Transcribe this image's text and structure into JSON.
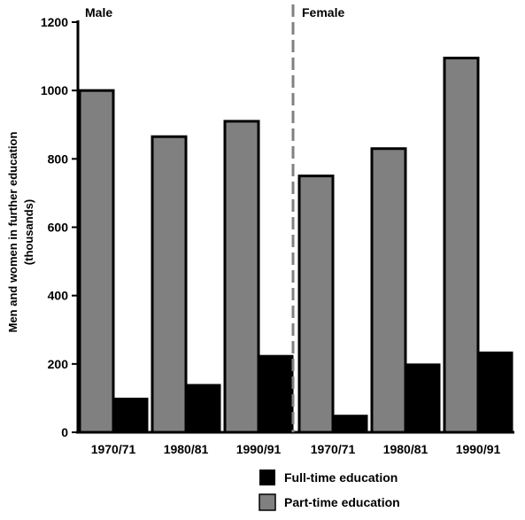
{
  "chart_data": {
    "type": "bar",
    "ylabel_line1": "Men and women in further education",
    "ylabel_line2": "(thousands)",
    "ylim": [
      0,
      1200
    ],
    "yticks": [
      0,
      200,
      400,
      600,
      800,
      1000,
      1200
    ],
    "grid": false,
    "legend_position": "bottom-right",
    "panels": [
      {
        "label": "Male",
        "categories": [
          "1970/71",
          "1980/81",
          "1990/91"
        ],
        "series": [
          {
            "name": "Part-time education",
            "values": [
              1000,
              865,
              910
            ]
          },
          {
            "name": "Full-time education",
            "values": [
              100,
              140,
              225
            ]
          }
        ]
      },
      {
        "label": "Female",
        "categories": [
          "1970/71",
          "1980/81",
          "1990/91"
        ],
        "series": [
          {
            "name": "Part-time education",
            "values": [
              750,
              830,
              1095
            ]
          },
          {
            "name": "Full-time education",
            "values": [
              50,
              200,
              235
            ]
          }
        ]
      }
    ],
    "legend": [
      {
        "label": "Full-time education",
        "color": "#000000"
      },
      {
        "label": "Part-time education",
        "color": "#808080"
      }
    ],
    "colors": {
      "Part-time education": "#808080",
      "Full-time education": "#000000",
      "divider": "#808080"
    }
  }
}
